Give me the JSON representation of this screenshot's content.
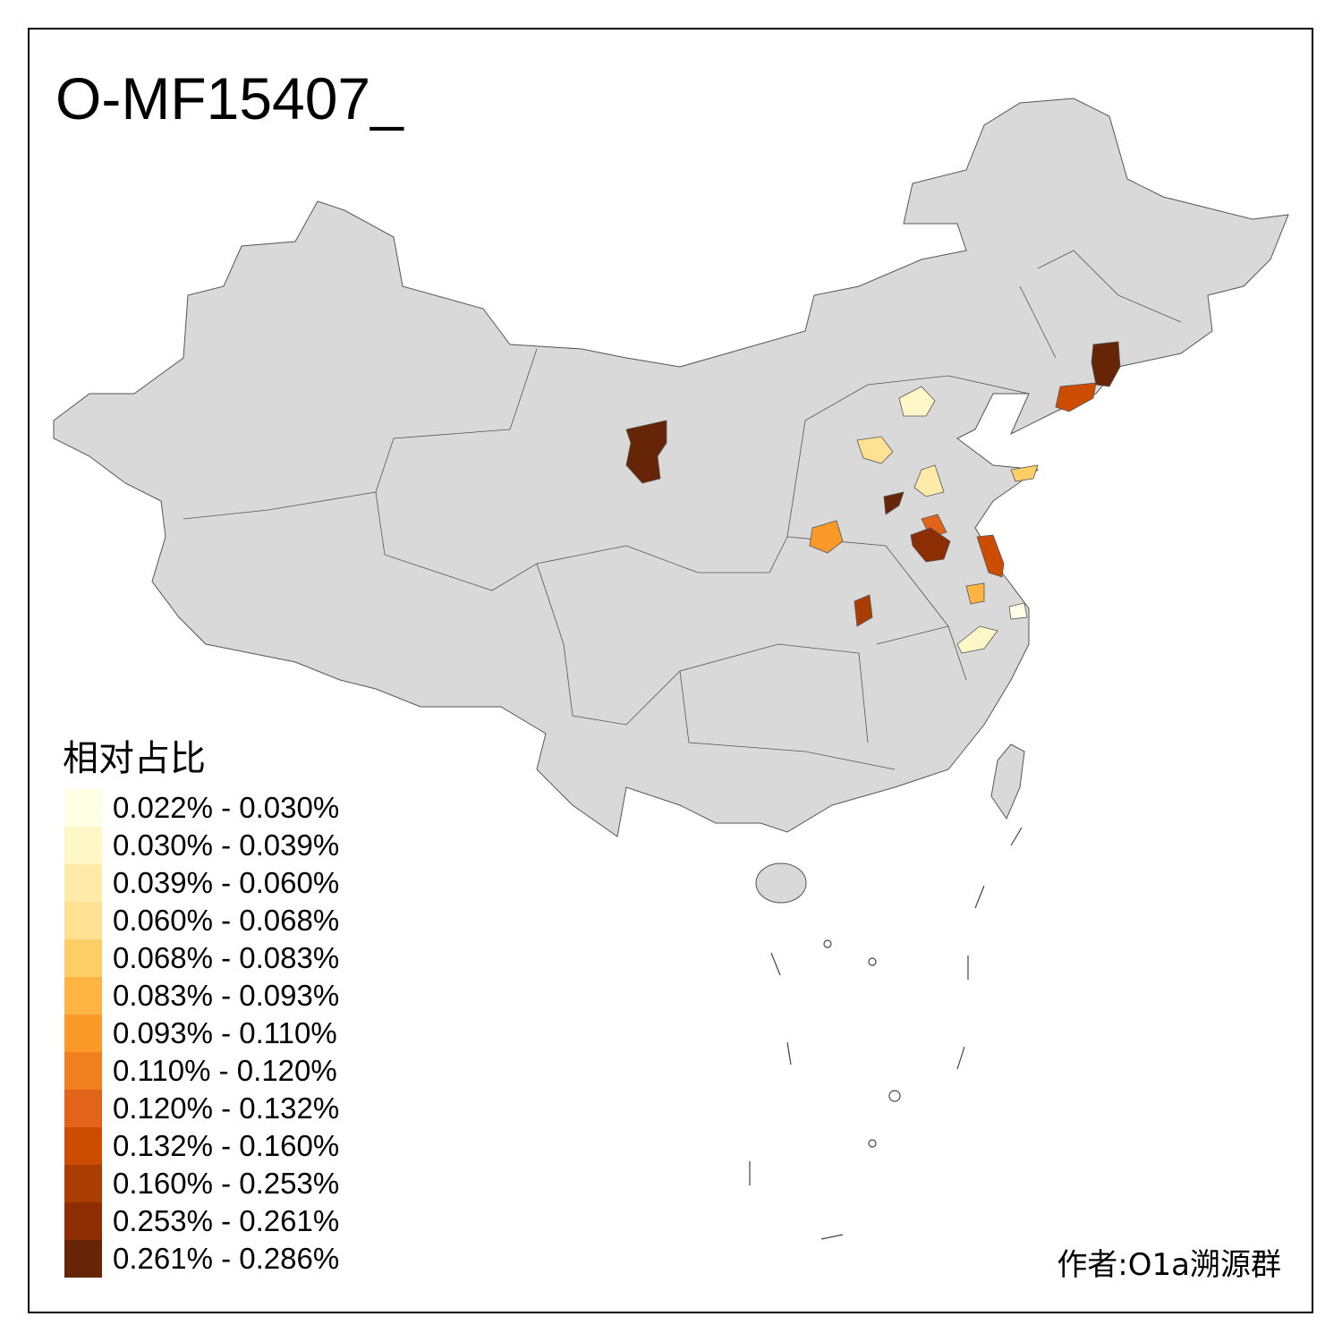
{
  "title": "O-MF15407_",
  "legend": {
    "title": "相对占比",
    "items": [
      {
        "label": "0.022% - 0.030%",
        "color": "#FFFFE5"
      },
      {
        "label": "0.030% - 0.039%",
        "color": "#FFF7C8"
      },
      {
        "label": "0.039% - 0.060%",
        "color": "#FEEBAA"
      },
      {
        "label": "0.060% - 0.068%",
        "color": "#FEE192"
      },
      {
        "label": "0.068% - 0.083%",
        "color": "#FECE66"
      },
      {
        "label": "0.083% - 0.093%",
        "color": "#FEB442"
      },
      {
        "label": "0.093% - 0.110%",
        "color": "#FB9A29"
      },
      {
        "label": "0.110% - 0.120%",
        "color": "#F07F20"
      },
      {
        "label": "0.120% - 0.132%",
        "color": "#E1641A"
      },
      {
        "label": "0.132% - 0.160%",
        "color": "#CC4C02"
      },
      {
        "label": "0.160% - 0.253%",
        "color": "#AA3D03"
      },
      {
        "label": "0.253% - 0.261%",
        "color": "#8C2D04"
      },
      {
        "label": "0.261% - 0.286%",
        "color": "#662506"
      }
    ]
  },
  "map": {
    "base_color": "#D9D9D9",
    "border_color": "#555555"
  },
  "author": "作者:O1a溯源群"
}
